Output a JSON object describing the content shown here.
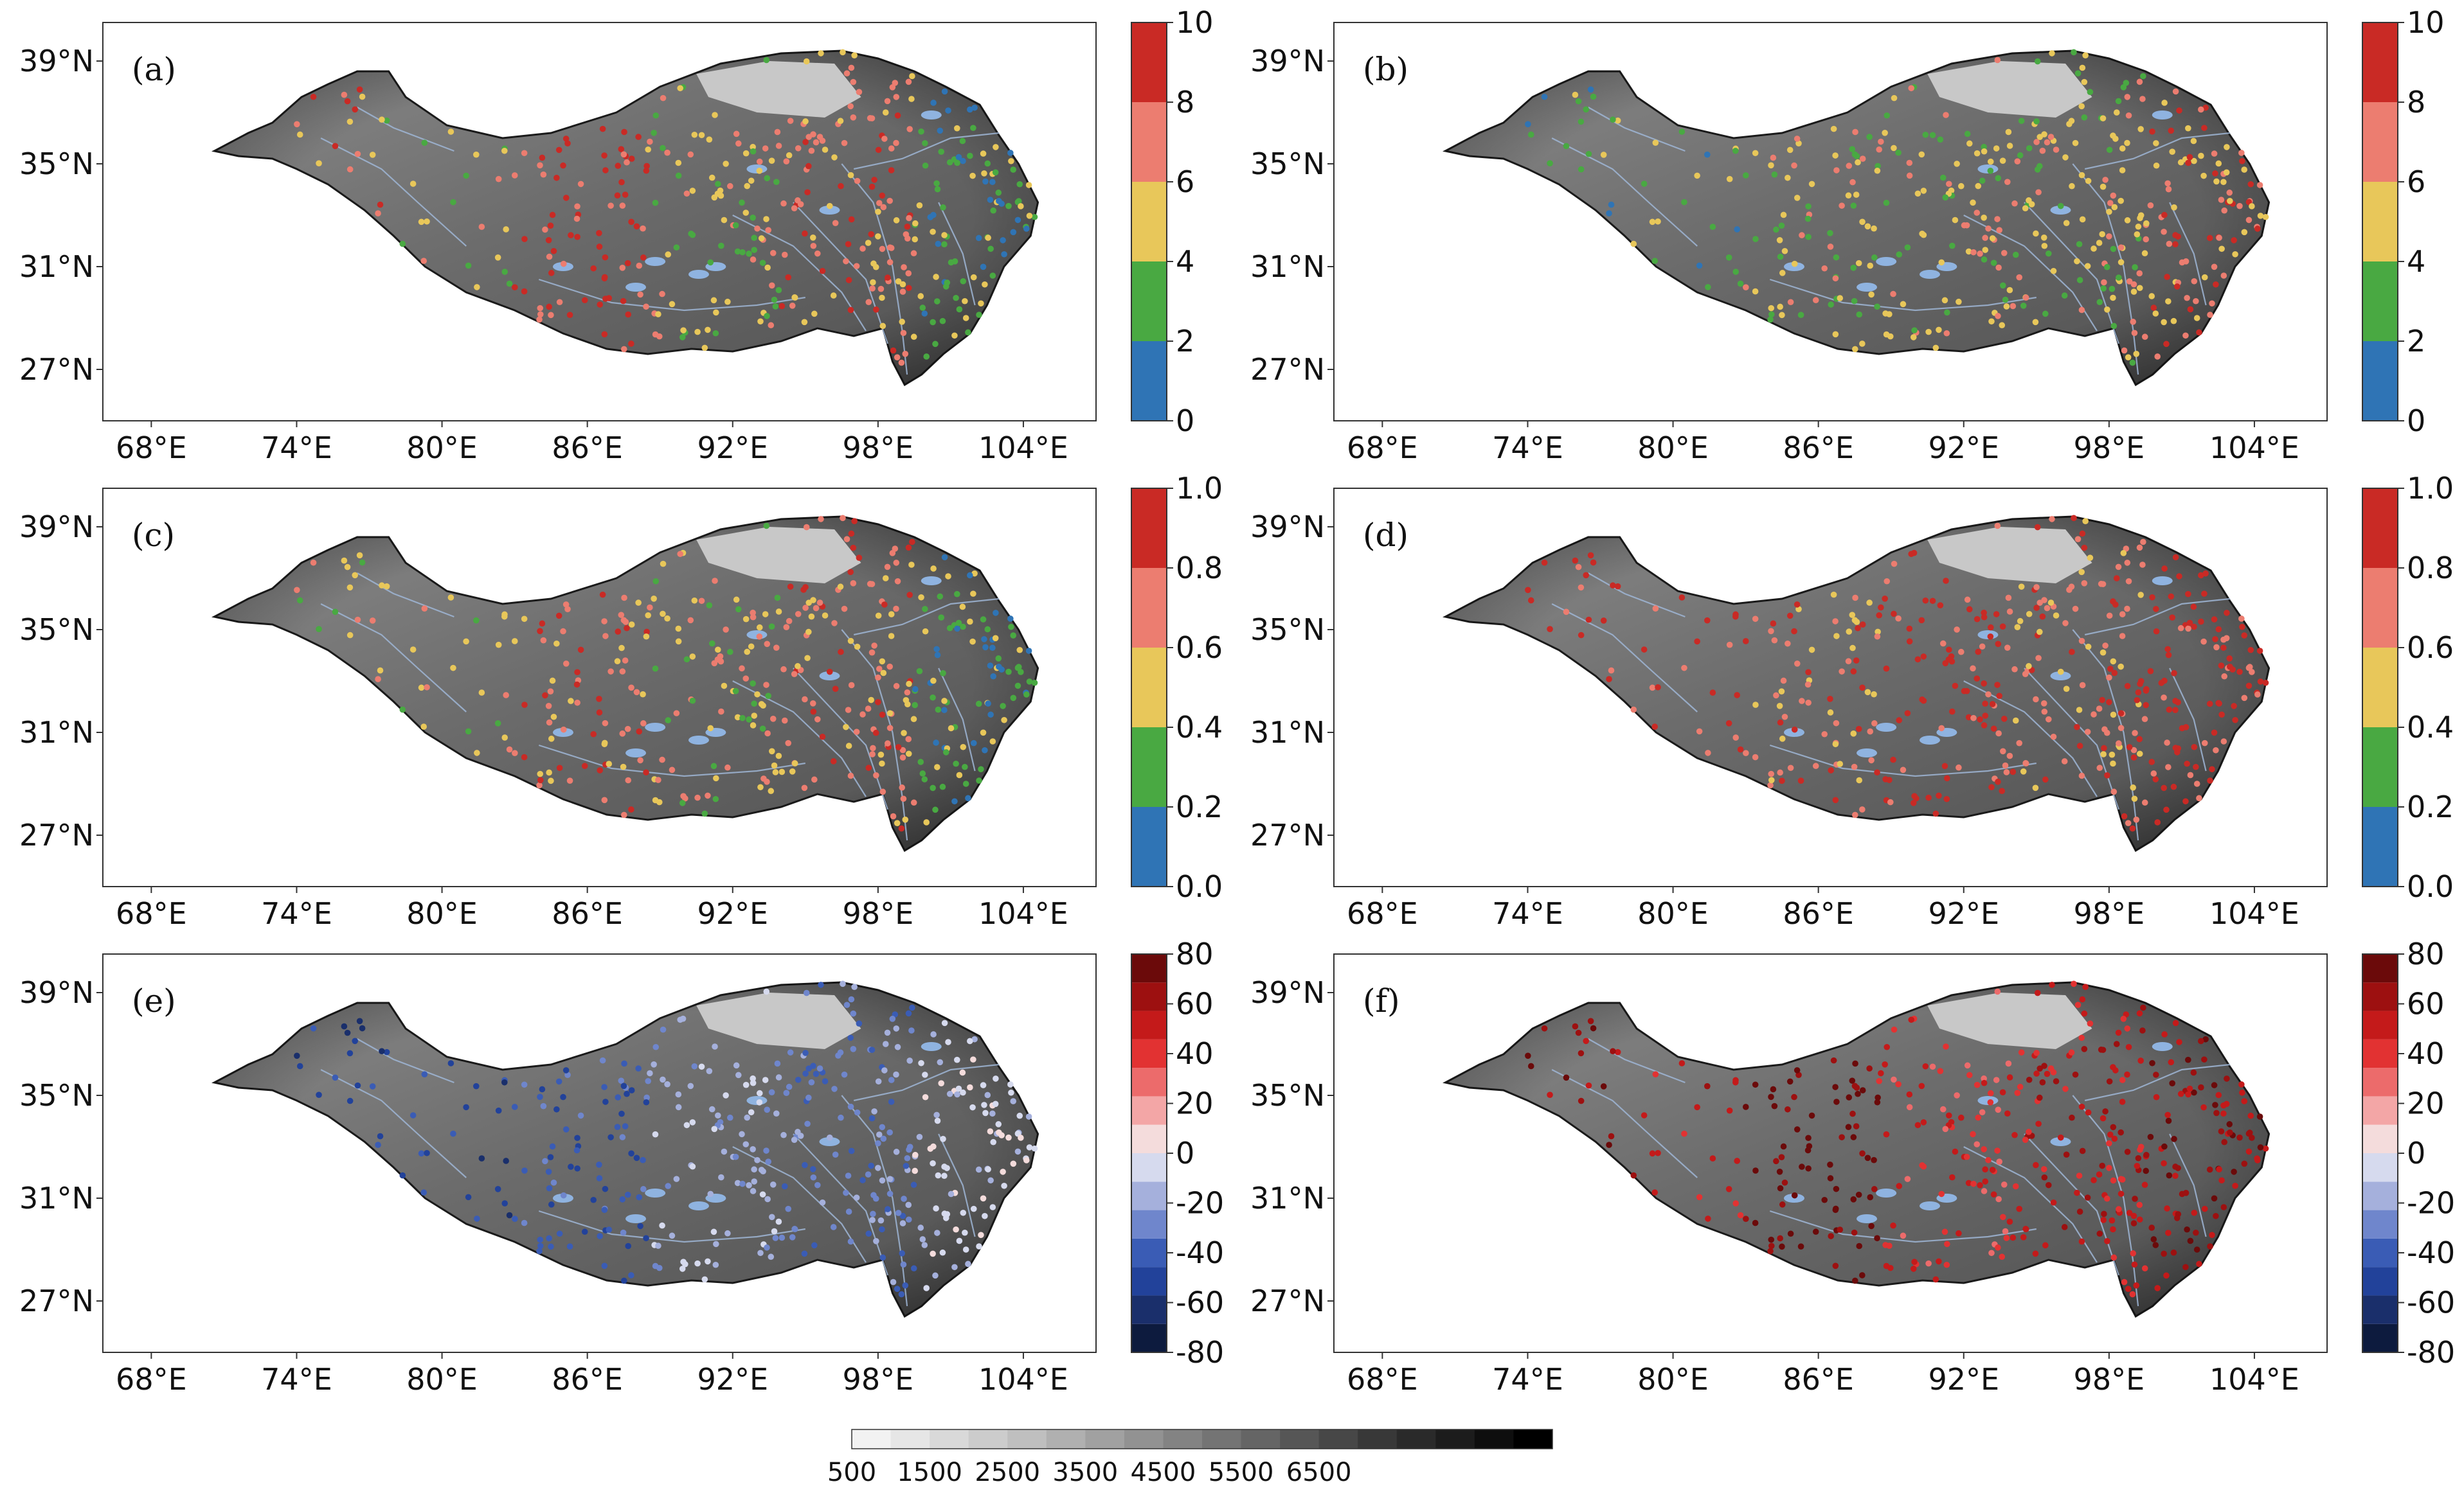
{
  "panels": [
    {
      "label": "(a)",
      "colorbar": {
        "ticks": [
          "0",
          "2",
          "4",
          "6",
          "8",
          "10"
        ],
        "colors": [
          "#2f74b5",
          "#49a942",
          "#e8c75a",
          "#ec7d70",
          "#c92a25"
        ]
      },
      "dominant": [
        3,
        2,
        4,
        2,
        3,
        1
      ]
    },
    {
      "label": "(b)",
      "colorbar": {
        "ticks": [
          "0",
          "2",
          "4",
          "6",
          "8",
          "10"
        ],
        "colors": [
          "#2f74b5",
          "#49a942",
          "#e8c75a",
          "#ec7d70",
          "#c92a25"
        ]
      },
      "dominant": [
        1,
        1,
        2,
        2,
        2,
        3
      ]
    },
    {
      "label": "(c)",
      "colorbar": {
        "ticks": [
          "0.0",
          "0.2",
          "0.4",
          "0.6",
          "0.8",
          "1.0"
        ],
        "colors": [
          "#2f74b5",
          "#49a942",
          "#e8c75a",
          "#ec7d70",
          "#c92a25"
        ]
      },
      "dominant": [
        2,
        2,
        3,
        2,
        3,
        1
      ]
    },
    {
      "label": "(d)",
      "colorbar": {
        "ticks": [
          "0.0",
          "0.2",
          "0.4",
          "0.6",
          "0.8",
          "1.0"
        ],
        "colors": [
          "#2f74b5",
          "#49a942",
          "#e8c75a",
          "#ec7d70",
          "#c92a25"
        ]
      },
      "dominant": [
        4,
        4,
        3,
        4,
        3,
        4
      ]
    },
    {
      "label": "(e)",
      "colorbar": {
        "ticks": [
          "-80",
          "-60",
          "-40",
          "-20",
          "0",
          "20",
          "40",
          "60",
          "80"
        ],
        "colors": [
          "#0d1b3e",
          "#1a2f6b",
          "#22429a",
          "#3a5cb5",
          "#6f86cc",
          "#a5b0dc",
          "#d6daee",
          "#f4dcdc",
          "#f3a6a6",
          "#ec6b6b",
          "#e23232",
          "#c41a1a",
          "#9d1010",
          "#6b0a0a"
        ]
      },
      "dominant": [
        2,
        2,
        3,
        5,
        4,
        6
      ]
    },
    {
      "label": "(f)",
      "colorbar": {
        "ticks": [
          "-80",
          "-60",
          "-40",
          "-20",
          "0",
          "20",
          "40",
          "60",
          "80"
        ],
        "colors": [
          "#0d1b3e",
          "#1a2f6b",
          "#22429a",
          "#3a5cb5",
          "#6f86cc",
          "#a5b0dc",
          "#d6daee",
          "#f4dcdc",
          "#f3a6a6",
          "#ec6b6b",
          "#e23232",
          "#c41a1a",
          "#9d1010",
          "#6b0a0a"
        ]
      },
      "dominant": [
        12,
        11,
        13,
        10,
        11,
        12
      ]
    }
  ],
  "axes": {
    "x_ticks": [
      "68°E",
      "74°E",
      "80°E",
      "86°E",
      "92°E",
      "98°E",
      "104°E"
    ],
    "x_values": [
      68,
      74,
      80,
      86,
      92,
      98,
      104
    ],
    "y_ticks": [
      "39°N",
      "35°N",
      "31°N",
      "27°N"
    ],
    "y_values": [
      39,
      35,
      31,
      27
    ],
    "lon_range": [
      66,
      107
    ],
    "lat_range": [
      25,
      40.5
    ]
  },
  "elevation_bar": {
    "ticks": [
      "500",
      "1500",
      "2500",
      "3500",
      "4500",
      "5500",
      "6500"
    ],
    "colors": [
      "#f2f2f2",
      "#e6e6e6",
      "#d9d9d9",
      "#cccccc",
      "#bfbfbf",
      "#b0b0b0",
      "#a1a1a1",
      "#929292",
      "#838383",
      "#747474",
      "#656565",
      "#565656",
      "#474747",
      "#383838",
      "#2a2a2a",
      "#1c1c1c",
      "#0e0e0e",
      "#000000"
    ]
  }
}
